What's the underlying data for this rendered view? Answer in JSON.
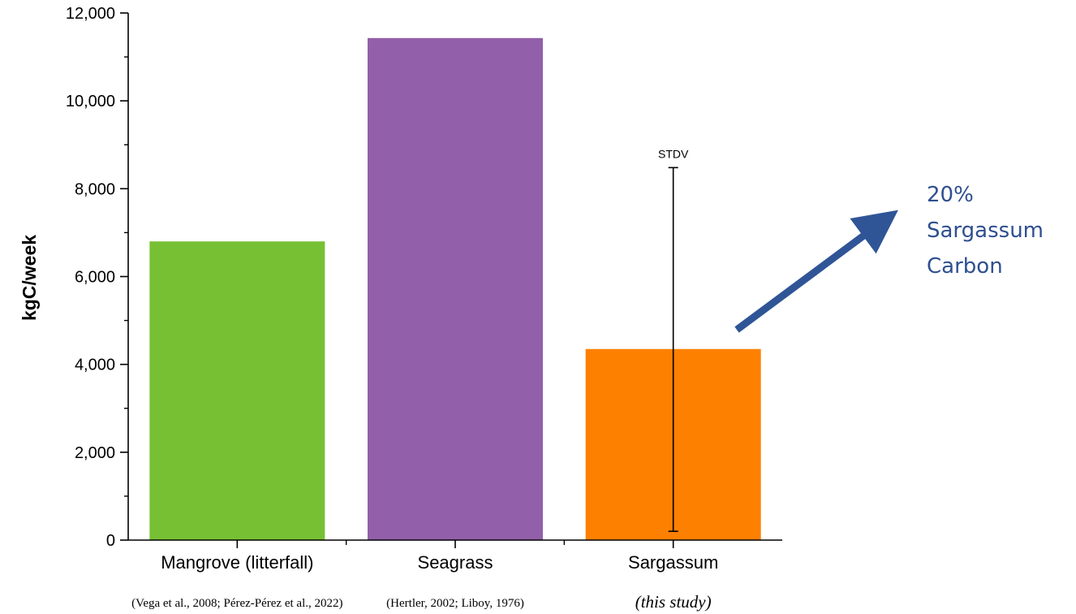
{
  "chart_data": {
    "type": "bar",
    "ylabel": "kgC/week",
    "ylim": [
      0,
      12000
    ],
    "y_ticks": [
      "0",
      "2,000",
      "4,000",
      "6,000",
      "8,000",
      "10,000",
      "12,000"
    ],
    "y_tick_values": [
      0,
      2000,
      4000,
      6000,
      8000,
      10000,
      12000
    ],
    "grid": false,
    "categories": [
      "Mangrove (litterfall)",
      "Seagrass",
      "Sargassum"
    ],
    "sources": [
      "(Vega et al., 2008; Pérez-Pérez et al., 2022)",
      "(Hertler, 2002; Liboy, 1976)",
      "(this study)"
    ],
    "values": [
      6800,
      11430,
      4350
    ],
    "colors": [
      "#77c034",
      "#9260aa",
      "#fe8000"
    ],
    "error_bar": {
      "category": "Sargassum",
      "low": 200,
      "high": 8480,
      "label": "STDV"
    },
    "annotation": {
      "lines": [
        "20%",
        "Sargassum",
        "Carbon"
      ],
      "color": "#2f5597"
    }
  }
}
